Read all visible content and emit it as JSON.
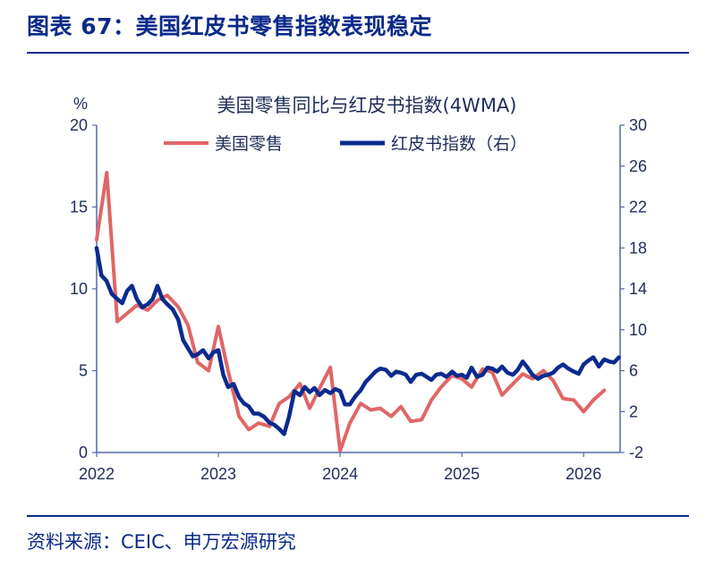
{
  "header": {
    "figure_title": "图表 67：美国红皮书零售指数表现稳定",
    "source": "资料来源：CEIC、申万宏源研究"
  },
  "chart_data": {
    "type": "line",
    "title": "美国零售同比与红皮书指数(4WMA)",
    "y_left_unit": "%",
    "y_left_lim": [
      0,
      20
    ],
    "y_left_ticks": [
      "0",
      "5",
      "10",
      "15",
      "20"
    ],
    "y_right_lim": [
      -2,
      30
    ],
    "y_right_ticks": [
      "-2",
      "2",
      "6",
      "10",
      "14",
      "18",
      "22",
      "26",
      "30"
    ],
    "x_lim": [
      2022.0,
      2026.3
    ],
    "x_ticks": [
      "2022",
      "2023",
      "2024",
      "2025",
      "2026"
    ],
    "legend_position": "top",
    "colors": {
      "retail": "#e06666",
      "redbook": "#0b2a8e",
      "axis": "#4e6aa8"
    },
    "series": [
      {
        "name": "美国零售",
        "axis": "left",
        "x": [
          2022.0,
          2022.083,
          2022.17,
          2022.25,
          2022.33,
          2022.42,
          2022.5,
          2022.58,
          2022.67,
          2022.75,
          2022.83,
          2022.92,
          2023.0,
          2023.08,
          2023.17,
          2023.25,
          2023.33,
          2023.42,
          2023.5,
          2023.58,
          2023.67,
          2023.75,
          2023.83,
          2023.92,
          2024.0,
          2024.08,
          2024.17,
          2024.25,
          2024.33,
          2024.42,
          2024.5,
          2024.58,
          2024.67,
          2024.75,
          2024.83,
          2024.92,
          2025.0,
          2025.08,
          2025.17,
          2025.25,
          2025.33,
          2025.42,
          2025.5,
          2025.58,
          2025.67,
          2025.75,
          2025.83,
          2025.92,
          2026.0,
          2026.08,
          2026.17
        ],
        "values": [
          13.0,
          17.1,
          8.0,
          8.5,
          9.0,
          8.7,
          9.3,
          9.6,
          8.9,
          7.8,
          5.5,
          5.0,
          7.7,
          5.0,
          2.2,
          1.4,
          1.8,
          1.6,
          3.0,
          3.4,
          4.2,
          2.7,
          3.9,
          5.2,
          0.1,
          1.8,
          3.0,
          2.6,
          2.7,
          2.2,
          2.8,
          1.9,
          2.0,
          3.2,
          4.0,
          4.7,
          4.5,
          4.0,
          5.1,
          4.9,
          3.5,
          4.2,
          4.8,
          4.5,
          5.0,
          4.4,
          3.3,
          3.2,
          2.5,
          3.2,
          3.8
        ]
      },
      {
        "name": "红皮书指数（右）",
        "axis": "right",
        "x": [
          2022.0,
          2022.04,
          2022.08,
          2022.125,
          2022.17,
          2022.21,
          2022.25,
          2022.29,
          2022.33,
          2022.375,
          2022.42,
          2022.46,
          2022.5,
          2022.54,
          2022.58,
          2022.625,
          2022.67,
          2022.71,
          2022.75,
          2022.79,
          2022.83,
          2022.875,
          2022.92,
          2022.96,
          2023.0,
          2023.04,
          2023.08,
          2023.125,
          2023.17,
          2023.21,
          2023.25,
          2023.29,
          2023.33,
          2023.375,
          2023.42,
          2023.46,
          2023.5,
          2023.54,
          2023.58,
          2023.625,
          2023.67,
          2023.71,
          2023.75,
          2023.79,
          2023.83,
          2023.875,
          2023.92,
          2023.96,
          2024.0,
          2024.04,
          2024.08,
          2024.125,
          2024.17,
          2024.21,
          2024.25,
          2024.29,
          2024.33,
          2024.375,
          2024.42,
          2024.46,
          2024.5,
          2024.54,
          2024.58,
          2024.625,
          2024.67,
          2024.71,
          2024.75,
          2024.79,
          2024.83,
          2024.875,
          2024.92,
          2024.96,
          2025.0,
          2025.04,
          2025.08,
          2025.125,
          2025.17,
          2025.21,
          2025.25,
          2025.29,
          2025.33,
          2025.375,
          2025.42,
          2025.46,
          2025.5,
          2025.54,
          2025.58,
          2025.625,
          2025.67,
          2025.71,
          2025.75,
          2025.79,
          2025.83,
          2025.875,
          2025.92,
          2025.96,
          2026.0,
          2026.04,
          2026.08,
          2026.125,
          2026.17,
          2026.21,
          2026.25,
          2026.29
        ],
        "values": [
          18.0,
          15.3,
          14.8,
          13.5,
          13.0,
          12.6,
          13.8,
          14.3,
          13.0,
          12.2,
          12.5,
          13.0,
          14.3,
          13.0,
          12.5,
          12.0,
          11.0,
          9.0,
          8.2,
          7.4,
          7.6,
          8.0,
          7.2,
          7.8,
          8.0,
          5.6,
          4.4,
          4.7,
          3.4,
          2.8,
          2.5,
          1.8,
          1.8,
          1.5,
          0.9,
          0.7,
          0.3,
          -0.2,
          1.5,
          4.0,
          3.6,
          4.4,
          3.9,
          4.3,
          3.6,
          4.1,
          3.8,
          4.2,
          4.0,
          2.7,
          2.7,
          3.5,
          4.1,
          4.9,
          5.4,
          5.9,
          6.2,
          6.1,
          5.5,
          5.9,
          5.8,
          5.6,
          4.9,
          5.6,
          5.7,
          5.4,
          5.1,
          5.6,
          5.7,
          5.4,
          5.9,
          5.5,
          5.6,
          5.3,
          6.3,
          5.4,
          5.6,
          6.3,
          6.2,
          5.9,
          6.4,
          5.8,
          5.6,
          6.1,
          6.9,
          6.3,
          5.6,
          5.2,
          5.5,
          5.6,
          5.8,
          6.3,
          6.6,
          6.2,
          5.9,
          5.7,
          6.6,
          7.0,
          7.3,
          6.4,
          7.1,
          6.9,
          6.8,
          7.3
        ]
      }
    ]
  }
}
